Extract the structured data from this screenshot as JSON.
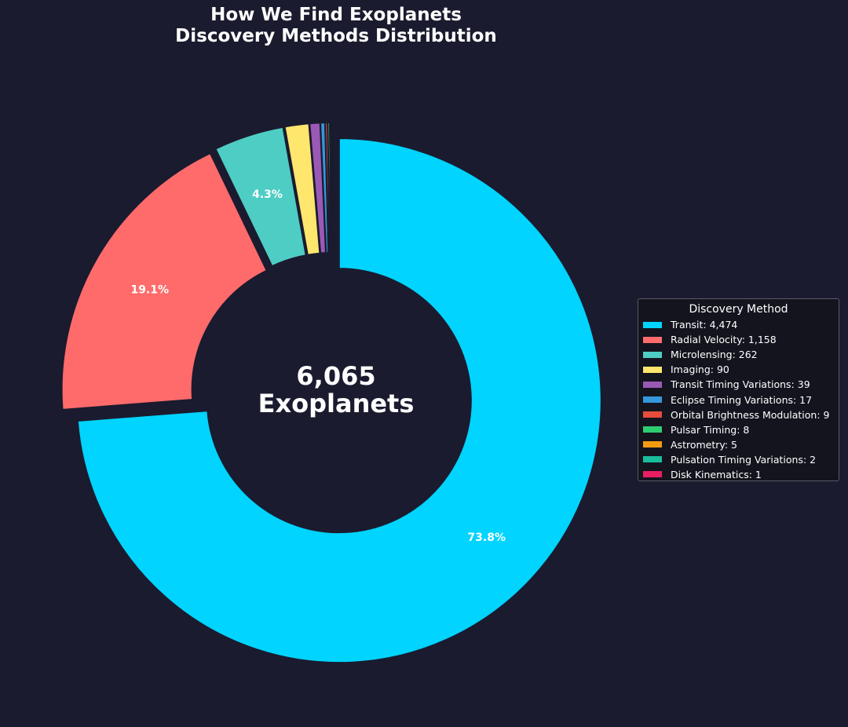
{
  "chart_data": {
    "type": "pie",
    "title": [
      "How We Find Exoplanets",
      "Discovery Methods Distribution"
    ],
    "center_label": [
      "6,065",
      "Exoplanets"
    ],
    "legend_title": "Discovery Method",
    "legend_position": "right",
    "series": [
      {
        "name": "Transit",
        "value": 4474,
        "value_label": "4,474",
        "percent_label": "73.8%",
        "color": "#00d4ff"
      },
      {
        "name": "Radial Velocity",
        "value": 1158,
        "value_label": "1,158",
        "percent_label": "19.1%",
        "color": "#ff6b6b"
      },
      {
        "name": "Microlensing",
        "value": 262,
        "value_label": "262",
        "percent_label": "4.3%",
        "color": "#4ecdc4"
      },
      {
        "name": "Imaging",
        "value": 90,
        "value_label": "90",
        "percent_label": "",
        "color": "#ffe66d"
      },
      {
        "name": "Transit Timing Variations",
        "value": 39,
        "value_label": "39",
        "percent_label": "",
        "color": "#9b59b6"
      },
      {
        "name": "Eclipse Timing Variations",
        "value": 17,
        "value_label": "17",
        "percent_label": "",
        "color": "#3498db"
      },
      {
        "name": "Orbital Brightness Modulation",
        "value": 9,
        "value_label": "9",
        "percent_label": "",
        "color": "#e74c3c"
      },
      {
        "name": "Pulsar Timing",
        "value": 8,
        "value_label": "8",
        "percent_label": "",
        "color": "#2ecc71"
      },
      {
        "name": "Astrometry",
        "value": 5,
        "value_label": "5",
        "percent_label": "",
        "color": "#f39c12"
      },
      {
        "name": "Pulsation Timing Variations",
        "value": 2,
        "value_label": "2",
        "percent_label": "",
        "color": "#1abc9c"
      },
      {
        "name": "Disk Kinematics",
        "value": 1,
        "value_label": "1",
        "percent_label": "",
        "color": "#e91e63"
      }
    ]
  }
}
